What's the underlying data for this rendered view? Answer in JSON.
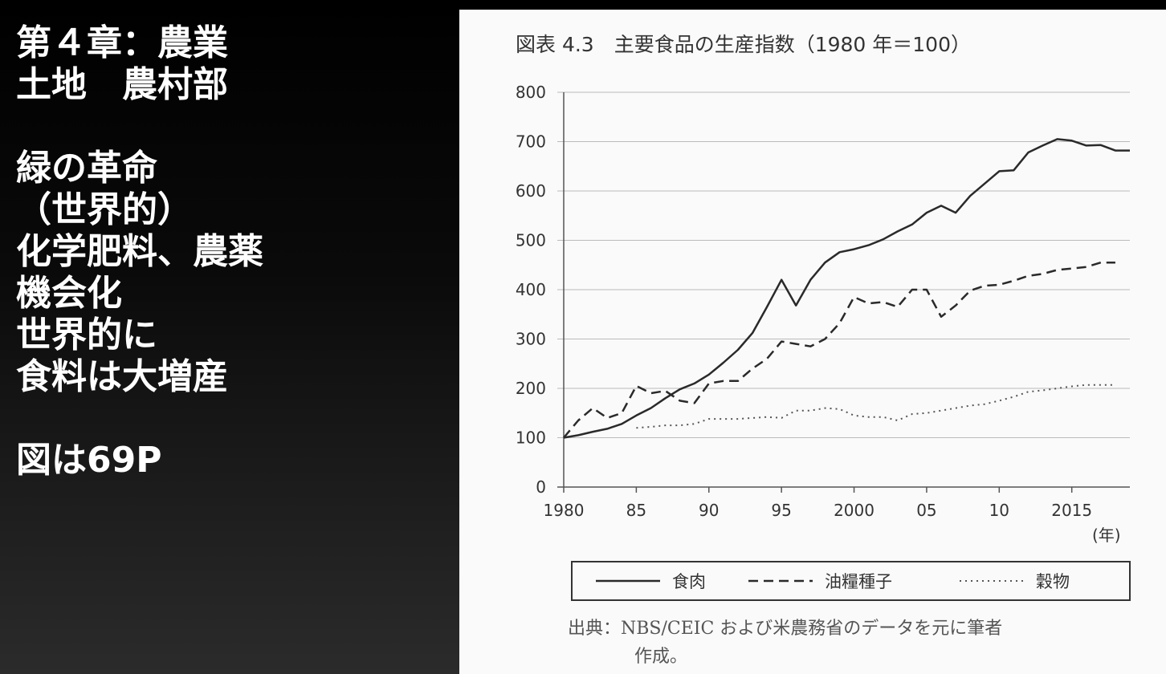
{
  "slide": {
    "lines": [
      "第４章：農業",
      "土地　農村部",
      "",
      "緑の革命",
      "（世界的）",
      "化学肥料、農薬",
      "機会化",
      "世界的に",
      "食料は大増産",
      "",
      "図は69P"
    ]
  },
  "chart_data": {
    "type": "line",
    "title": "図表 4.3　主要食品の生産指数（1980 年＝100）",
    "xlabel": "(年)",
    "ylabel": "",
    "xlim": [
      1980,
      2019
    ],
    "ylim": [
      0,
      800
    ],
    "yticks": [
      0,
      100,
      200,
      300,
      400,
      500,
      600,
      700,
      800
    ],
    "xticks": [
      1980,
      1985,
      1990,
      1995,
      2000,
      2005,
      2010,
      2015
    ],
    "xtick_labels": [
      "1980",
      "85",
      "90",
      "95",
      "2000",
      "05",
      "10",
      "2015"
    ],
    "grid": "horizontal",
    "legend_position": "bottom",
    "series": [
      {
        "name": "食肉",
        "style": "solid",
        "x": [
          1980,
          1981,
          1982,
          1983,
          1984,
          1985,
          1986,
          1987,
          1988,
          1989,
          1990,
          1991,
          1992,
          1993,
          1994,
          1995,
          1996,
          1997,
          1998,
          1999,
          2000,
          2001,
          2002,
          2003,
          2004,
          2005,
          2006,
          2007,
          2008,
          2009,
          2010,
          2011,
          2012,
          2013,
          2014,
          2015,
          2016,
          2017,
          2018,
          2019
        ],
        "values": [
          100,
          105,
          112,
          118,
          128,
          145,
          160,
          180,
          198,
          210,
          228,
          252,
          278,
          312,
          365,
          420,
          368,
          420,
          455,
          476,
          482,
          490,
          502,
          518,
          532,
          556,
          570,
          556,
          590,
          615,
          640,
          642,
          678,
          692,
          705,
          702,
          692,
          693,
          682,
          682
        ]
      },
      {
        "name": "油糧種子",
        "style": "dashed",
        "x": [
          1980,
          1981,
          1982,
          1983,
          1984,
          1985,
          1986,
          1987,
          1988,
          1989,
          1990,
          1991,
          1992,
          1993,
          1994,
          1995,
          1996,
          1997,
          1998,
          1999,
          2000,
          2001,
          2002,
          2003,
          2004,
          2005,
          2006,
          2007,
          2008,
          2009,
          2010,
          2011,
          2012,
          2013,
          2014,
          2015,
          2016,
          2017,
          2018
        ],
        "values": [
          100,
          135,
          160,
          140,
          150,
          205,
          190,
          195,
          175,
          170,
          210,
          215,
          215,
          240,
          260,
          295,
          290,
          285,
          300,
          332,
          385,
          372,
          375,
          365,
          400,
          400,
          345,
          368,
          398,
          408,
          410,
          418,
          428,
          432,
          440,
          443,
          446,
          455,
          455
        ]
      },
      {
        "name": "穀物",
        "style": "dotted",
        "x": [
          1985,
          1986,
          1987,
          1988,
          1989,
          1990,
          1991,
          1992,
          1993,
          1994,
          1995,
          1996,
          1997,
          1998,
          1999,
          2000,
          2001,
          2002,
          2003,
          2004,
          2005,
          2006,
          2007,
          2008,
          2009,
          2010,
          2011,
          2012,
          2013,
          2014,
          2015,
          2016,
          2017,
          2018
        ],
        "values": [
          120,
          122,
          125,
          125,
          128,
          138,
          138,
          138,
          140,
          142,
          140,
          155,
          155,
          160,
          158,
          145,
          142,
          142,
          135,
          148,
          150,
          155,
          160,
          165,
          168,
          175,
          183,
          193,
          196,
          200,
          204,
          207,
          207,
          207
        ]
      }
    ],
    "source_lines": [
      "出典：NBS/CEIC および米農務省のデータを元に筆者",
      "作成。"
    ]
  }
}
